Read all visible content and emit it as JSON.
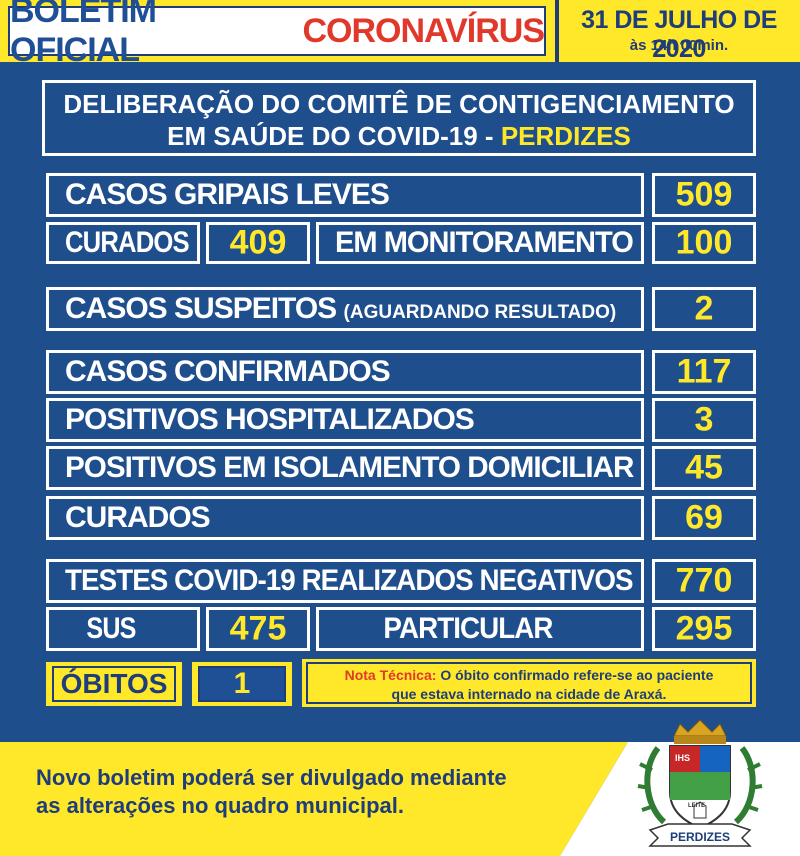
{
  "header": {
    "title_part1": "BOLETIM OFICIAL",
    "title_part2": "CORONAVÍRUS",
    "date": "31 DE JULHO DE 2020",
    "time": "às 14h 00min."
  },
  "deliberation": {
    "line1": "DELIBERAÇÃO DO COMITÊ DE CONTIGENCIAMENTO",
    "line2_prefix": "EM SAÚDE DO COVID-19 -",
    "line2_city": "PERDIZES"
  },
  "flu": {
    "label": "CASOS GRIPAIS LEVES",
    "value": "509",
    "cured_label": "CURADOS",
    "cured_value": "409",
    "monitoring_label": "EM MONITORAMENTO",
    "monitoring_value": "100"
  },
  "suspects": {
    "label": "CASOS SUSPEITOS",
    "note": "(AGUARDANDO RESULTADO)",
    "value": "2"
  },
  "confirmed": [
    {
      "label": "CASOS CONFIRMADOS",
      "value": "117"
    },
    {
      "label": "POSITIVOS HOSPITALIZADOS",
      "value": "3"
    },
    {
      "label": "POSITIVOS EM ISOLAMENTO DOMICILIAR",
      "value": "45"
    },
    {
      "label": "CURADOS",
      "value": "69"
    }
  ],
  "tests": {
    "label": "TESTES COVID-19 REALIZADOS NEGATIVOS",
    "value": "770",
    "sus_label": "SUS",
    "sus_value": "475",
    "private_label": "PARTICULAR",
    "private_value": "295"
  },
  "deaths": {
    "label": "ÓBITOS",
    "value": "1",
    "note_title": "Nota Técnica:",
    "note_line1": "O óbito confirmado refere-se ao paciente",
    "note_line2": "que estava internado na cidade de Araxá."
  },
  "footer": {
    "line1": "Novo boletim poderá ser divulgado mediante",
    "line2": "as alterações no quadro municipal."
  },
  "crest": {
    "banner": "PERDIZES",
    "shield_text": "IHS",
    "milk_text": "LEITE"
  },
  "colors": {
    "background": "#1e4e8c",
    "yellow": "#ffe82a",
    "red": "#e0382a"
  }
}
